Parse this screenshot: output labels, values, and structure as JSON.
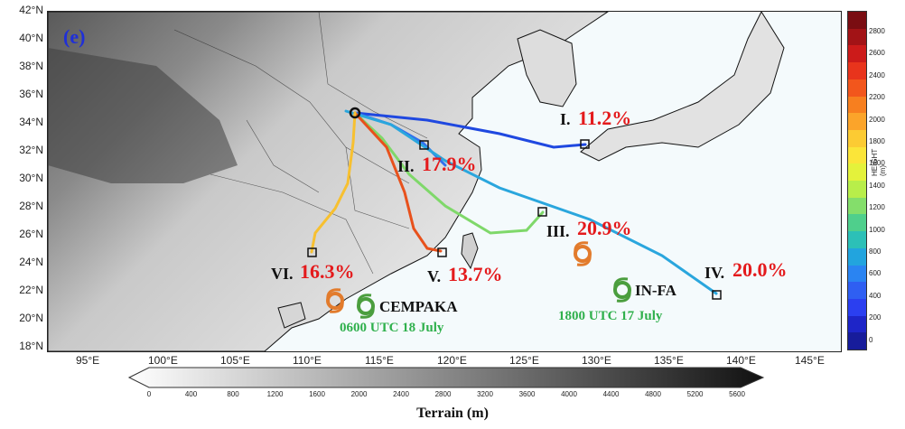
{
  "panel_label": "(e)",
  "lat_labels": [
    "42°N",
    "40°N",
    "38°N",
    "36°N",
    "34°N",
    "32°N",
    "30°N",
    "28°N",
    "26°N",
    "24°N",
    "22°N",
    "20°N",
    "18°N"
  ],
  "lon_labels": [
    "95°E",
    "100°E",
    "105°E",
    "110°E",
    "115°E",
    "120°E",
    "125°E",
    "130°E",
    "135°E",
    "140°E",
    "145°E"
  ],
  "trajectories": [
    {
      "roman": "I.",
      "percent": "11.2%"
    },
    {
      "roman": "II.",
      "percent": "17.9%"
    },
    {
      "roman": "III.",
      "percent": "20.9%"
    },
    {
      "roman": "IV.",
      "percent": "20.0%"
    },
    {
      "roman": "V.",
      "percent": "13.7%"
    },
    {
      "roman": "VI.",
      "percent": "16.3%"
    }
  ],
  "storms": [
    {
      "name": "CEMPAKA",
      "time": "0600 UTC 18 July"
    },
    {
      "name": "IN-FA",
      "time": "1800 UTC 17 July"
    }
  ],
  "height_colorbar": {
    "title": "HEIGHT (m)",
    "ticks": [
      "2800",
      "2600",
      "2400",
      "2200",
      "2000",
      "1800",
      "1600",
      "1400",
      "1200",
      "1000",
      "800",
      "600",
      "400",
      "200",
      "0"
    ],
    "colors": [
      "#7a0d12",
      "#a21316",
      "#cc1b1a",
      "#e8341c",
      "#f2561c",
      "#f77f1f",
      "#fba42a",
      "#fccb33",
      "#fbe539",
      "#e4f23b",
      "#b8ee4a",
      "#84de6b",
      "#4fcf8c",
      "#2cc0b7",
      "#22a4de",
      "#2a84f2",
      "#2f5ff2",
      "#2b3ff0",
      "#1e25c8",
      "#171c9b"
    ]
  },
  "terrain_colorbar": {
    "title": "Terrain (m)",
    "ticks": [
      "0",
      "400",
      "800",
      "1200",
      "1600",
      "2000",
      "2400",
      "2800",
      "3200",
      "3600",
      "4000",
      "4400",
      "4800",
      "5200",
      "5600"
    ]
  }
}
